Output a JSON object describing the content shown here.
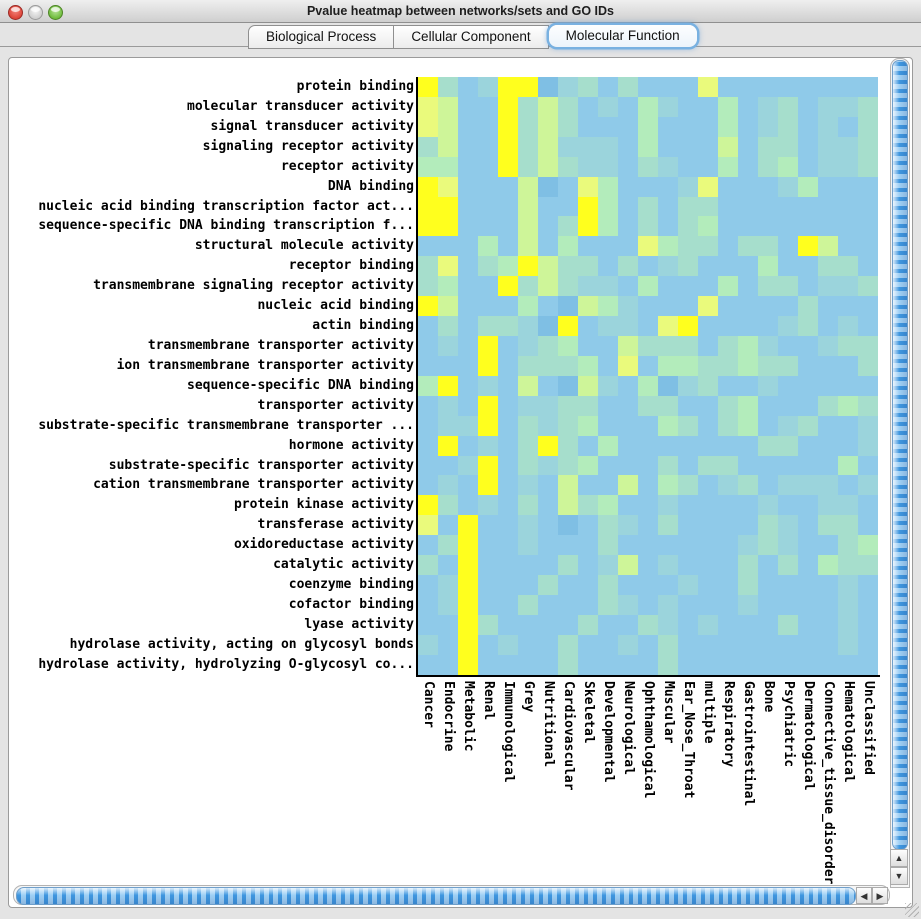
{
  "window": {
    "title": "Pvalue heatmap between networks/sets and GO IDs"
  },
  "tabs": [
    {
      "label": "Biological Process",
      "selected": false
    },
    {
      "label": "Cellular Component",
      "selected": false
    },
    {
      "label": "Molecular Function",
      "selected": true
    }
  ],
  "chart_data": {
    "type": "heatmap",
    "rows": [
      "protein binding",
      "molecular transducer activity",
      "signal transducer activity",
      "signaling receptor activity",
      "receptor activity",
      "DNA binding",
      "nucleic acid binding transcription factor act...",
      "sequence-specific DNA binding transcription f...",
      "structural molecule activity",
      "receptor binding",
      "transmembrane signaling receptor activity",
      "nucleic acid binding",
      "actin binding",
      "transmembrane transporter activity",
      "ion transmembrane transporter activity",
      "sequence-specific DNA binding",
      "transporter activity",
      "substrate-specific transmembrane transporter ...",
      "hormone activity",
      "substrate-specific transporter activity",
      "cation transmembrane transporter activity",
      "protein kinase activity",
      "transferase activity",
      "oxidoreductase activity",
      "catalytic activity",
      "coenzyme binding",
      "cofactor binding",
      "lyase activity",
      "hydrolase activity, acting on glycosyl bonds",
      "hydrolase activity, hydrolyzing O-glycosyl co..."
    ],
    "columns": [
      "Cancer",
      "Endocrine",
      "Metabolic",
      "Renal",
      "Immunological",
      "Grey",
      "Nutritional",
      "Cardiovascular",
      "Skeletal",
      "Developmental",
      "Neurological",
      "Ophthamological",
      "Muscular",
      "Ear_Nose_Throat",
      "multiple",
      "Respiratory",
      "Gastrointestinal",
      "Bone",
      "Psychiatric",
      "Dermatological",
      "Connective_tissue_disorder",
      "Hematological",
      "Unclassified"
    ],
    "palette": [
      "#7FBFE4",
      "#8FCAE9",
      "#9BD4DC",
      "#A6DECC",
      "#B3ECBB",
      "#CEF599",
      "#EAFA7C",
      "#FFFF1E"
    ],
    "value_scale": "0 = low (blue) to 7 = high (yellow)",
    "grid": [
      "73127702313111611111111",
      "65117353121421141231223",
      "65117353111411141231213",
      "35117352221411151331223",
      "44117353221321141341223",
      "76111501641112611124111",
      "77111511741313311111111",
      "77111513741313411111111",
      "11141514111643313317511",
      "36134753313123111411331",
      "34117353221411141331223",
      "75111410542111611113111",
      "13133207122167111123121",
      "12171234115333134211233",
      "11171333416144334331113",
      "47121510521402311211111",
      "12171223311331134111343",
      "12271323411143134123112",
      "17121373141111111331112",
      "11271323411131331111141",
      "12171215115143123122212",
      "73121315341121111211221",
      "61711210132131111321331",
      "13711211131111112321134",
      "31711113125121113131433",
      "12711131131112113111121",
      "12711311132121112111121",
      "11731111311321211131121",
      "21712113112131111111121",
      "11711113111131111111111"
    ]
  },
  "scrollbars": {
    "vertical_up_arrow": "▲",
    "vertical_down_arrow": "▼",
    "horizontal_left_arrow": "◀",
    "horizontal_right_arrow": "▶"
  }
}
